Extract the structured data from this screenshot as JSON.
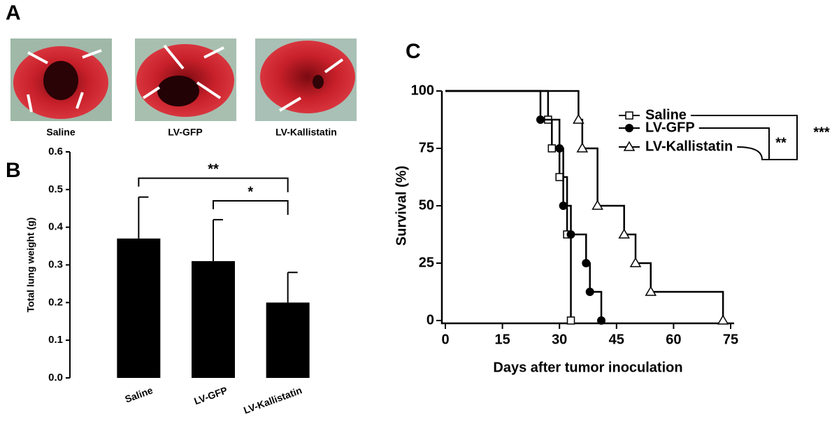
{
  "panels": [
    "A",
    "B",
    "C"
  ],
  "photos": {
    "captions": [
      "Saline",
      "LV-GFP",
      "LV-Kallistatin"
    ]
  },
  "chart_data": [
    {
      "type": "bar",
      "ylabel": "Total lung weight (g)",
      "categories": [
        "Saline",
        "LV-GFP",
        "LV-Kallistatin"
      ],
      "values": [
        0.37,
        0.31,
        0.2
      ],
      "errors": [
        0.11,
        0.11,
        0.08
      ],
      "color": "#000000",
      "ylim": [
        0,
        0.6
      ],
      "yticks": [
        {
          "value": 0,
          "label": "0.0"
        },
        0.1,
        0.2,
        0.3,
        0.4,
        0.5,
        0.6
      ],
      "annotations": [
        {
          "text": "**",
          "from": 0,
          "to": 2,
          "y": 0.53
        },
        {
          "text": "*",
          "from": 1,
          "to": 2,
          "y": 0.47
        }
      ]
    },
    {
      "type": "step",
      "xlabel": "Days after tumor inoculation",
      "ylabel": "Survival (%)",
      "xlim": [
        0,
        75
      ],
      "xticks": [
        0,
        15,
        30,
        45,
        60,
        75
      ],
      "ylim": [
        0,
        100
      ],
      "yticks": [
        0,
        25,
        50,
        75,
        100
      ],
      "series": [
        {
          "name": "Saline",
          "color": "#000000",
          "marker": "square",
          "x": [
            0,
            27,
            28,
            30,
            32,
            33
          ],
          "values": [
            100,
            87.5,
            75,
            62.5,
            37.5,
            0
          ]
        },
        {
          "name": "LV-GFP",
          "color": "#000000",
          "marker": "circle",
          "x": [
            0,
            25,
            30,
            31,
            33,
            37,
            38,
            41
          ],
          "values": [
            100,
            87.5,
            75,
            50,
            37.5,
            25,
            12.5,
            0
          ]
        },
        {
          "name": "LV-Kallistatin",
          "color": "#000000",
          "marker": "triangle",
          "x": [
            0,
            35,
            36,
            40,
            47,
            50,
            54,
            73
          ],
          "values": [
            100,
            87.5,
            75,
            50,
            37.5,
            25,
            12.5,
            0
          ]
        }
      ],
      "significance": [
        "**",
        "***"
      ]
    }
  ]
}
